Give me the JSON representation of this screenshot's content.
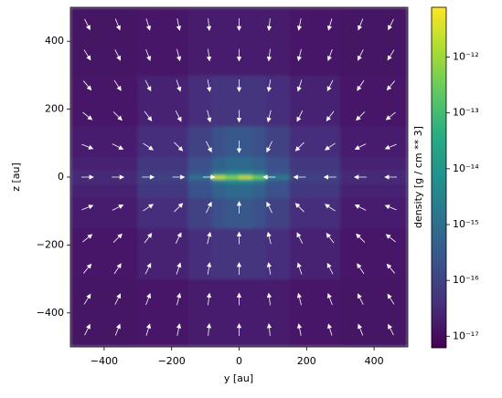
{
  "chart_data": {
    "type": "heatmap",
    "x_label": "y [au]",
    "y_label": "z [au]",
    "colorbar_label": "density [g / cm ** 3]",
    "colormap": "viridis",
    "color_scale": "log",
    "xlim": [
      -500,
      500
    ],
    "ylim": [
      -500,
      500
    ],
    "xticks": [
      {
        "value": -400,
        "label": "−400"
      },
      {
        "value": -200,
        "label": "−200"
      },
      0,
      200,
      400
    ],
    "yticks": [
      {
        "value": -400,
        "label": "−400"
      },
      {
        "value": -200,
        "label": "−200"
      },
      0,
      200,
      400
    ],
    "clim": [
      6.2e-18,
      7.8e-12
    ],
    "cticks": [
      {
        "value": 1e-17,
        "label": "10⁻¹⁷"
      },
      {
        "value": 1e-16,
        "label": "10⁻¹⁶"
      },
      {
        "value": 1e-15,
        "label": "10⁻¹⁵"
      },
      {
        "value": 1e-14,
        "label": "10⁻¹⁴"
      },
      {
        "value": 1e-13,
        "label": "10⁻¹³"
      },
      {
        "value": 1e-12,
        "label": "10⁻¹²"
      }
    ],
    "density": {
      "x_edges": [
        -500,
        -300,
        -150,
        -80,
        -40,
        0,
        40,
        80,
        150,
        300,
        500
      ],
      "y_edges": [
        -500,
        -300,
        -150,
        -60,
        -20,
        -6,
        6,
        20,
        60,
        150,
        300,
        500
      ],
      "values": [
        [
          1.2e-17,
          1.5e-17,
          1.8e-17,
          2e-17,
          2e-17,
          2e-17,
          2e-17,
          1.8e-17,
          1.5e-17,
          1.2e-17
        ],
        [
          1.5e-17,
          2.5e-17,
          4e-17,
          5e-17,
          5e-17,
          5e-17,
          5e-17,
          4e-17,
          2.5e-17,
          1.5e-17
        ],
        [
          2e-17,
          4e-17,
          1e-16,
          2e-16,
          3e-16,
          3e-16,
          2e-16,
          1e-16,
          4e-17,
          2e-17
        ],
        [
          2.5e-17,
          6e-17,
          2e-16,
          5e-16,
          8e-16,
          8e-16,
          5e-16,
          2e-16,
          6e-17,
          2.5e-17
        ],
        [
          3e-17,
          8e-17,
          3e-16,
          2e-15,
          4e-15,
          4e-15,
          2e-15,
          3e-16,
          8e-17,
          3e-17
        ],
        [
          3e-17,
          1e-16,
          1e-15,
          2e-12,
          5e-13,
          2e-12,
          3e-13,
          2e-15,
          1e-16,
          3e-17
        ],
        [
          3e-17,
          8e-17,
          3e-16,
          2e-15,
          4e-15,
          4e-15,
          2e-15,
          3e-16,
          8e-17,
          3e-17
        ],
        [
          2.5e-17,
          6e-17,
          2e-16,
          5e-16,
          8e-16,
          8e-16,
          5e-16,
          2e-16,
          6e-17,
          2.5e-17
        ],
        [
          2e-17,
          4e-17,
          1e-16,
          2e-16,
          3e-16,
          3e-16,
          2e-16,
          1e-16,
          4e-17,
          2e-17
        ],
        [
          1.5e-17,
          2.5e-17,
          4e-17,
          5e-17,
          5e-17,
          5e-17,
          5e-17,
          4e-17,
          2.5e-17,
          1.5e-17
        ],
        [
          1.2e-17,
          1.5e-17,
          1.8e-17,
          2e-17,
          2e-17,
          2e-17,
          2e-17,
          1.8e-17,
          1.5e-17,
          1.2e-17
        ]
      ]
    },
    "quiver": {
      "color": "#ffffff",
      "x": [
        -450,
        -360,
        -270,
        -180,
        -90,
        0,
        90,
        180,
        270,
        360,
        450
      ],
      "y": [
        -450,
        -360,
        -270,
        -180,
        -90,
        0,
        90,
        180,
        270,
        360,
        450
      ],
      "u": [
        [
          0.5,
          0.4,
          0.3,
          0.2,
          0.1,
          0,
          -0.1,
          -0.2,
          -0.3,
          -0.4,
          -0.5
        ],
        [
          0.5,
          0.4,
          0.3,
          0.2,
          0.1,
          0,
          -0.1,
          -0.2,
          -0.3,
          -0.4,
          -0.5
        ],
        [
          0.5,
          0.4,
          0.3,
          0.2,
          0.1,
          0,
          -0.1,
          -0.2,
          -0.3,
          -0.4,
          -0.5
        ],
        [
          0.5,
          0.4,
          0.3,
          0.2,
          0.1,
          0,
          -0.1,
          -0.2,
          -0.3,
          -0.4,
          -0.5
        ],
        [
          0.5,
          0.4,
          0.3,
          0.2,
          0.1,
          0,
          -0.1,
          -0.2,
          -0.3,
          -0.4,
          -0.5
        ],
        [
          1,
          0.8,
          0.6,
          0.4,
          0.2,
          0,
          -0.2,
          -0.4,
          -0.6,
          -0.8,
          -1
        ],
        [
          0.5,
          0.4,
          0.3,
          0.2,
          0.1,
          0,
          -0.1,
          -0.2,
          -0.3,
          -0.4,
          -0.5
        ],
        [
          0.5,
          0.4,
          0.3,
          0.2,
          0.1,
          0,
          -0.1,
          -0.2,
          -0.3,
          -0.4,
          -0.5
        ],
        [
          0.5,
          0.4,
          0.3,
          0.2,
          0.1,
          0,
          -0.1,
          -0.2,
          -0.3,
          -0.4,
          -0.5
        ],
        [
          0.5,
          0.4,
          0.3,
          0.2,
          0.1,
          0,
          -0.1,
          -0.2,
          -0.3,
          -0.4,
          -0.5
        ],
        [
          0.5,
          0.4,
          0.3,
          0.2,
          0.1,
          0,
          -0.1,
          -0.2,
          -0.3,
          -0.4,
          -0.5
        ]
      ],
      "v": [
        [
          1,
          1,
          1,
          1,
          1,
          1,
          1,
          1,
          1,
          1,
          1
        ],
        [
          0.8,
          0.8,
          0.8,
          0.8,
          0.8,
          0.8,
          0.8,
          0.8,
          0.8,
          0.8,
          0.8
        ],
        [
          0.6,
          0.6,
          0.6,
          0.6,
          0.6,
          0.6,
          0.6,
          0.6,
          0.6,
          0.6,
          0.6
        ],
        [
          0.4,
          0.4,
          0.4,
          0.4,
          0.4,
          0.4,
          0.4,
          0.4,
          0.4,
          0.4,
          0.4
        ],
        [
          0.2,
          0.2,
          0.2,
          0.2,
          0.2,
          0.2,
          0.2,
          0.2,
          0.2,
          0.2,
          0.2
        ],
        [
          0,
          0,
          0,
          0,
          0,
          0,
          0,
          0,
          0,
          0,
          0
        ],
        [
          -0.2,
          -0.2,
          -0.2,
          -0.2,
          -0.2,
          -0.2,
          -0.2,
          -0.2,
          -0.2,
          -0.2,
          -0.2
        ],
        [
          -0.4,
          -0.4,
          -0.4,
          -0.4,
          -0.4,
          -0.4,
          -0.4,
          -0.4,
          -0.4,
          -0.4,
          -0.4
        ],
        [
          -0.6,
          -0.6,
          -0.6,
          -0.6,
          -0.6,
          -0.6,
          -0.6,
          -0.6,
          -0.6,
          -0.6,
          -0.6
        ],
        [
          -0.8,
          -0.8,
          -0.8,
          -0.8,
          -0.8,
          -0.8,
          -0.8,
          -0.8,
          -0.8,
          -0.8,
          -0.8
        ],
        [
          -1,
          -1,
          -1,
          -1,
          -1,
          -1,
          -1,
          -1,
          -1,
          -1,
          -1
        ]
      ]
    }
  }
}
